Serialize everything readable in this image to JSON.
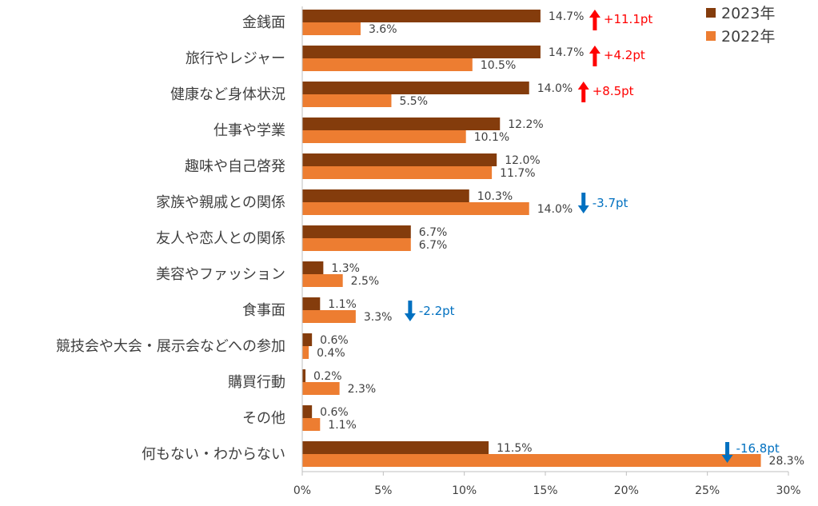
{
  "chart_data": {
    "type": "bar",
    "orientation": "horizontal",
    "categories": [
      "金銭面",
      "旅行やレジャー",
      "健康など身体状況",
      "仕事や学業",
      "趣味や自己啓発",
      "家族や親戚との関係",
      "友人や恋人との関係",
      "美容やファッション",
      "食事面",
      "競技会や大会・展示会などへの参加",
      "購買行動",
      "その他",
      "何もない・わからない"
    ],
    "series": [
      {
        "name": "2023年",
        "color": "#843C0C",
        "values": [
          14.7,
          14.7,
          14.0,
          12.2,
          12.0,
          10.3,
          6.7,
          1.3,
          1.1,
          0.6,
          0.2,
          0.6,
          11.5
        ],
        "labels": [
          "14.7%",
          "14.7%",
          "14.0%",
          "12.2%",
          "12.0%",
          "10.3%",
          "6.7%",
          "1.3%",
          "1.1%",
          "0.6%",
          "0.2%",
          "0.6%",
          "11.5%"
        ]
      },
      {
        "name": "2022年",
        "color": "#ED7D31",
        "values": [
          3.6,
          10.5,
          5.5,
          10.1,
          11.7,
          14.0,
          6.7,
          2.5,
          3.3,
          0.4,
          2.3,
          1.1,
          28.3
        ],
        "labels": [
          "3.6%",
          "10.5%",
          "5.5%",
          "10.1%",
          "11.7%",
          "14.0%",
          "6.7%",
          "2.5%",
          "3.3%",
          "0.4%",
          "2.3%",
          "1.1%",
          "28.3%"
        ]
      }
    ],
    "xlim": [
      0,
      30
    ],
    "xticks": [
      0,
      5,
      10,
      15,
      20,
      25,
      30
    ],
    "xtick_labels": [
      "0%",
      "5%",
      "10%",
      "15%",
      "20%",
      "25%",
      "30%"
    ],
    "legend": {
      "position": "top-right",
      "entries": [
        "2023年",
        "2022年"
      ]
    },
    "annotations": [
      {
        "category_index": 0,
        "text": "+11.1pt",
        "direction": "up",
        "color": "#FF0000"
      },
      {
        "category_index": 1,
        "text": "+4.2pt",
        "direction": "up",
        "color": "#FF0000"
      },
      {
        "category_index": 2,
        "text": "+8.5pt",
        "direction": "up",
        "color": "#FF0000"
      },
      {
        "category_index": 5,
        "text": "-3.7pt",
        "direction": "down",
        "color": "#0070C0"
      },
      {
        "category_index": 8,
        "text": "-2.2pt",
        "direction": "down",
        "color": "#0070C0"
      },
      {
        "category_index": 12,
        "text": "-16.8pt",
        "direction": "down",
        "color": "#0070C0"
      }
    ],
    "gridlines": false
  }
}
